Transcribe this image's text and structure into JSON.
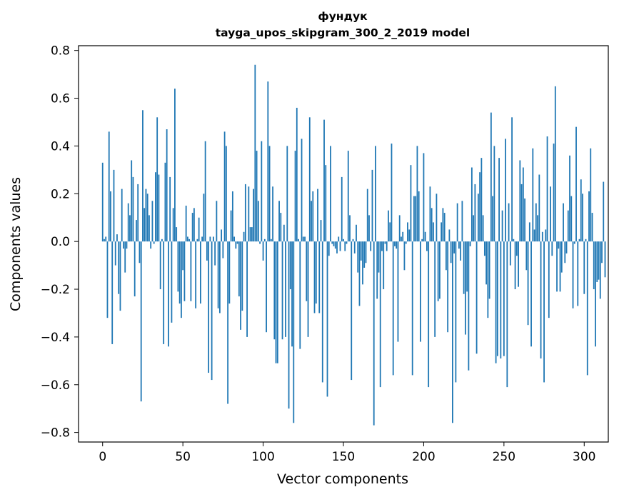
{
  "chart_data": {
    "type": "bar",
    "title": "фундук",
    "subtitle": "tayga_upos_skipgram_300_2_2019 model",
    "xlabel": "Vector components",
    "ylabel": "Components values",
    "xlim": [
      -15,
      315
    ],
    "ylim": [
      -0.84,
      0.82
    ],
    "xticks": [
      0,
      50,
      100,
      150,
      200,
      250,
      300
    ],
    "xtick_labels": [
      "0",
      "50",
      "100",
      "150",
      "200",
      "250",
      "300"
    ],
    "yticks": [
      -0.8,
      -0.6,
      -0.4,
      -0.2,
      0.0,
      0.2,
      0.4,
      0.6,
      0.8
    ],
    "ytick_labels": [
      "−0.8",
      "−0.6",
      "−0.4",
      "−0.2",
      "0.0",
      "0.2",
      "0.4",
      "0.6",
      "0.8"
    ],
    "grid": false,
    "bar_color": "#1f77b4",
    "values": [
      0.33,
      0.01,
      0.02,
      -0.32,
      0.46,
      0.21,
      -0.43,
      0.3,
      -0.1,
      0.03,
      -0.22,
      -0.29,
      0.22,
      -0.03,
      -0.13,
      -0.03,
      0.16,
      0.11,
      0.34,
      0.27,
      -0.23,
      0.09,
      0.24,
      -0.09,
      -0.67,
      0.55,
      0.14,
      0.22,
      0.2,
      0.11,
      -0.03,
      0.17,
      -0.01,
      0.29,
      0.52,
      0.28,
      -0.2,
      0.01,
      -0.43,
      0.33,
      0.47,
      -0.44,
      0.27,
      -0.34,
      0.14,
      0.64,
      0.06,
      -0.21,
      -0.26,
      -0.32,
      -0.12,
      -0.25,
      0.15,
      0.02,
      0.01,
      -0.25,
      0.12,
      0.14,
      -0.28,
      0.01,
      0.1,
      -0.26,
      0.02,
      0.2,
      0.42,
      -0.08,
      -0.55,
      0.02,
      -0.58,
      0.02,
      -0.1,
      0.17,
      -0.28,
      -0.3,
      0.05,
      -0.07,
      0.46,
      0.4,
      -0.68,
      -0.26,
      0.13,
      0.21,
      0.02,
      -0.03,
      -0.01,
      -0.23,
      -0.37,
      -0.29,
      0.04,
      0.24,
      -0.4,
      0.23,
      0.06,
      0.06,
      0.22,
      0.74,
      0.38,
      0.17,
      -0.01,
      0.42,
      -0.08,
      0.01,
      -0.38,
      0.67,
      0.4,
      0.01,
      0.23,
      -0.41,
      -0.51,
      -0.51,
      0.17,
      0.12,
      -0.41,
      0.07,
      -0.4,
      0.4,
      -0.7,
      -0.2,
      -0.44,
      -0.76,
      0.38,
      0.56,
      0.01,
      -0.45,
      0.43,
      0.02,
      0.02,
      -0.25,
      -0.4,
      0.52,
      0.17,
      0.21,
      -0.3,
      -0.26,
      0.22,
      -0.3,
      0.09,
      -0.59,
      0.51,
      0.32,
      -0.65,
      -0.06,
      0.4,
      -0.01,
      -0.02,
      -0.03,
      -0.05,
      0.02,
      -0.04,
      0.27,
      0.01,
      -0.04,
      -0.01,
      0.38,
      0.11,
      -0.58,
      0.01,
      -0.05,
      0.07,
      -0.13,
      -0.27,
      -0.08,
      -0.18,
      -0.11,
      -0.09,
      0.22,
      0.11,
      -0.04,
      0.3,
      -0.77,
      0.4,
      -0.24,
      -0.13,
      -0.61,
      -0.04,
      -0.2,
      -0.01,
      -0.04,
      0.13,
      0.08,
      0.41,
      -0.56,
      -0.02,
      -0.03,
      -0.42,
      0.11,
      0.02,
      0.04,
      -0.12,
      -0.01,
      0.08,
      0.05,
      0.32,
      -0.56,
      0.19,
      0.19,
      0.4,
      0.21,
      -0.42,
      0.01,
      0.37,
      0.04,
      -0.04,
      -0.61,
      0.23,
      0.14,
      0.08,
      -0.4,
      0.2,
      -0.25,
      -0.24,
      0.08,
      0.14,
      0.12,
      -0.12,
      -0.38,
      0.05,
      -0.09,
      -0.76,
      -0.05,
      -0.59,
      0.16,
      -0.03,
      -0.08,
      0.17,
      -0.22,
      -0.39,
      -0.21,
      -0.54,
      -0.02,
      0.31,
      0.11,
      0.24,
      -0.47,
      0.2,
      0.29,
      0.35,
      0.11,
      -0.06,
      -0.18,
      -0.32,
      -0.24,
      0.54,
      0.19,
      0.4,
      -0.51,
      -0.48,
      0.35,
      -0.49,
      0.13,
      -0.48,
      0.43,
      -0.61,
      0.16,
      -0.1,
      0.52,
      0.01,
      -0.2,
      -0.06,
      -0.19,
      0.34,
      0.24,
      0.31,
      0.18,
      -0.12,
      -0.35,
      0.08,
      -0.44,
      0.39,
      0.05,
      0.16,
      0.11,
      0.28,
      -0.49,
      0.04,
      -0.59,
      0.05,
      0.44,
      -0.32,
      0.23,
      -0.06,
      0.41,
      0.65,
      -0.21,
      -0.03,
      -0.21,
      -0.13,
      0.16,
      -0.09,
      -0.05,
      0.13,
      0.36,
      0.19,
      -0.28,
      -0.01,
      0.48,
      -0.27,
      0.01,
      0.26,
      0.2,
      -0.22,
      0.01,
      -0.56,
      0.21,
      0.39,
      0.12,
      -0.2,
      -0.44,
      -0.17,
      -0.16,
      -0.24,
      -0.09,
      0.25,
      -0.15
    ]
  }
}
